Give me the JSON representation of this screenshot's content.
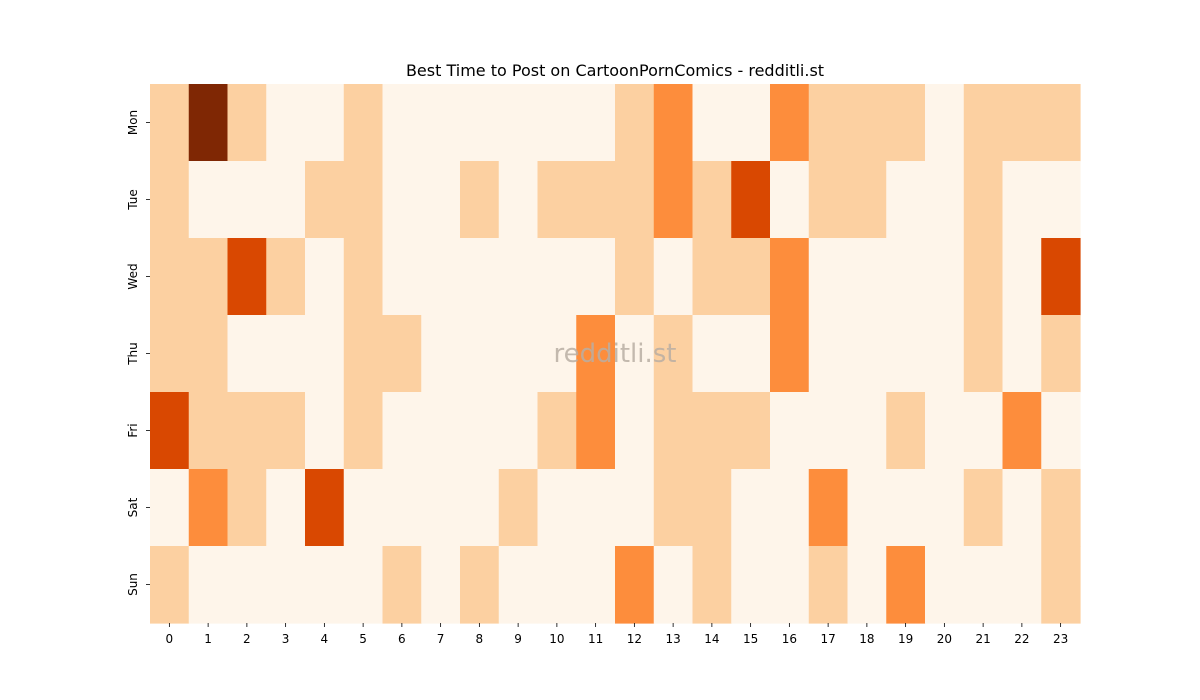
{
  "chart_data": {
    "type": "heatmap",
    "title": "Best Time to Post on CartoonPornComics - redditli.st",
    "watermark": "redditli.st",
    "x_categories": [
      "0",
      "1",
      "2",
      "3",
      "4",
      "5",
      "6",
      "7",
      "8",
      "9",
      "10",
      "11",
      "12",
      "13",
      "14",
      "15",
      "16",
      "17",
      "18",
      "19",
      "20",
      "21",
      "22",
      "23"
    ],
    "y_categories": [
      "Mon",
      "Tue",
      "Wed",
      "Thu",
      "Fri",
      "Sat",
      "Sun"
    ],
    "values": [
      [
        1,
        4,
        1,
        0,
        0,
        1,
        0,
        0,
        0,
        0,
        0,
        0,
        1,
        2,
        0,
        0,
        2,
        1,
        1,
        1,
        0,
        1,
        1,
        1
      ],
      [
        1,
        0,
        0,
        0,
        1,
        1,
        0,
        0,
        1,
        0,
        1,
        1,
        1,
        2,
        1,
        3,
        0,
        1,
        1,
        0,
        0,
        1,
        0,
        0
      ],
      [
        1,
        1,
        3,
        1,
        0,
        1,
        0,
        0,
        0,
        0,
        0,
        0,
        1,
        0,
        1,
        1,
        2,
        0,
        0,
        0,
        0,
        1,
        0,
        3
      ],
      [
        1,
        1,
        0,
        0,
        0,
        1,
        1,
        0,
        0,
        0,
        0,
        2,
        0,
        1,
        0,
        0,
        2,
        0,
        0,
        0,
        0,
        1,
        0,
        1
      ],
      [
        3,
        1,
        1,
        1,
        0,
        1,
        0,
        0,
        0,
        0,
        1,
        2,
        0,
        1,
        1,
        1,
        0,
        0,
        0,
        1,
        0,
        0,
        2,
        0
      ],
      [
        0,
        2,
        1,
        0,
        3,
        0,
        0,
        0,
        0,
        1,
        0,
        0,
        0,
        1,
        1,
        0,
        0,
        2,
        0,
        0,
        0,
        1,
        0,
        1
      ],
      [
        1,
        0,
        0,
        0,
        0,
        0,
        1,
        0,
        1,
        0,
        0,
        0,
        2,
        0,
        1,
        0,
        0,
        1,
        0,
        2,
        0,
        0,
        0,
        1
      ]
    ],
    "value_range": [
      0,
      4
    ],
    "colorscale": [
      "#fef5ea",
      "#fcd0a1",
      "#fd8d3c",
      "#d94801",
      "#7f2704"
    ],
    "legend": "none",
    "grid": false
  }
}
